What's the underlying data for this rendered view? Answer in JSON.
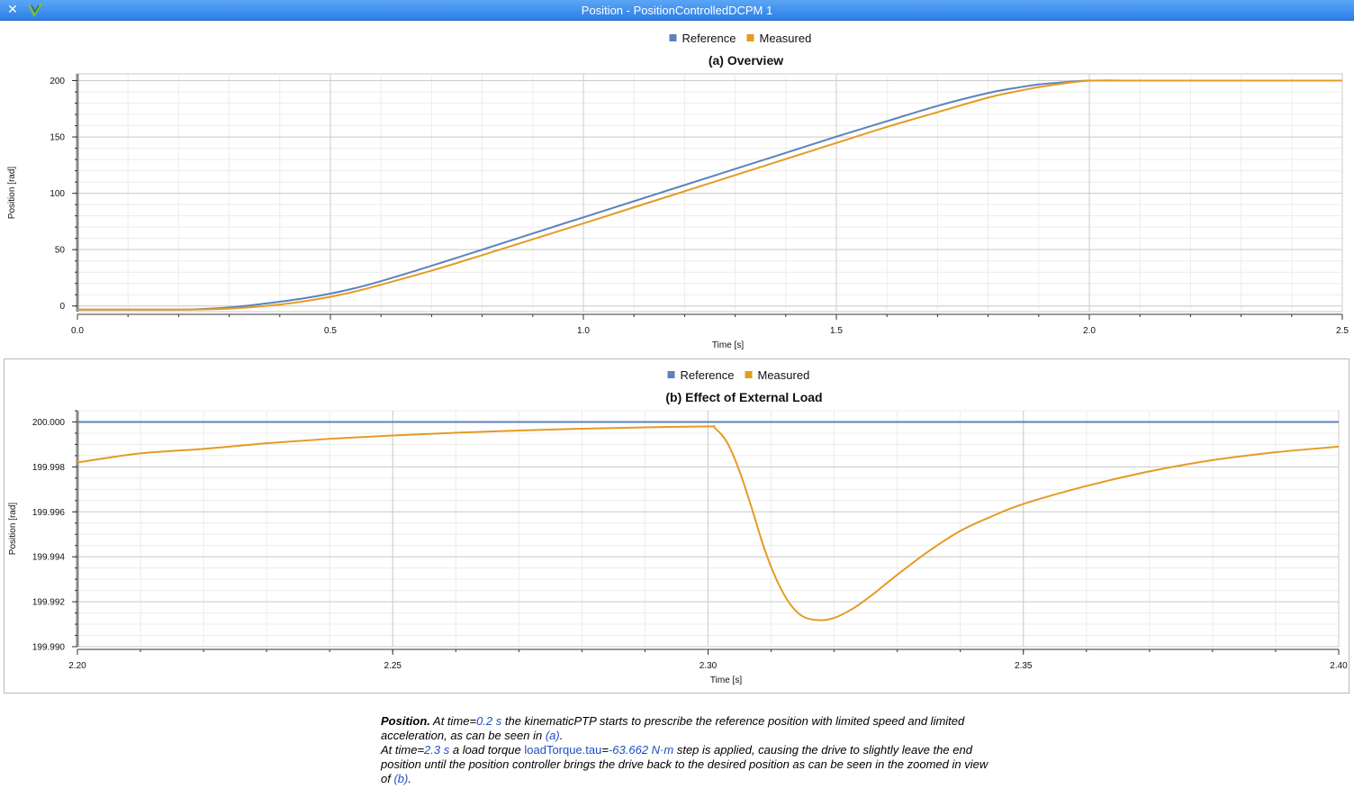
{
  "window": {
    "title": "Position - PositionControlledDCPM 1"
  },
  "colors": {
    "reference": "#5b82bd",
    "measured": "#e59b22",
    "grid_major": "#cccccc",
    "grid_minor": "#ececec"
  },
  "chart_data": [
    {
      "type": "line",
      "title": "(a)  Overview",
      "xlabel": "Time [s]",
      "ylabel": "Position [rad]",
      "xlim": [
        0,
        2.5
      ],
      "ylim": [
        -5,
        206
      ],
      "xticks": [
        "0.0",
        "0.5",
        "1.0",
        "1.5",
        "2.0",
        "2.5"
      ],
      "xtick_values": [
        0,
        0.5,
        1.0,
        1.5,
        2.0,
        2.5
      ],
      "yticks": [
        "0",
        "50",
        "100",
        "150",
        "200"
      ],
      "ytick_values": [
        0,
        50,
        100,
        150,
        200
      ],
      "legend": [
        "Reference",
        "Measured"
      ],
      "legend_position": "top-center",
      "grid": true,
      "series": [
        {
          "name": "Reference",
          "x": [
            0,
            0.1,
            0.2,
            0.25,
            0.3,
            0.35,
            0.4,
            0.45,
            0.5,
            0.55,
            0.6,
            0.7,
            0.8,
            0.9,
            1.0,
            1.1,
            1.2,
            1.3,
            1.4,
            1.5,
            1.6,
            1.7,
            1.8,
            1.85,
            1.9,
            1.95,
            2.0,
            2.1,
            2.2,
            2.3,
            2.4,
            2.5
          ],
          "y": [
            -3.2,
            -3.2,
            -3.2,
            -2.6,
            -1.3,
            1.0,
            3.8,
            7.0,
            11.0,
            16.0,
            22.0,
            35.7,
            50.0,
            64.4,
            78.7,
            93.0,
            107.3,
            121.6,
            135.9,
            150.3,
            164.0,
            177.6,
            189.0,
            193.2,
            196.6,
            198.5,
            200.0,
            200.0,
            200.0,
            200.0,
            200.0,
            200.0
          ]
        },
        {
          "name": "Measured",
          "x": [
            0,
            0.1,
            0.2,
            0.25,
            0.3,
            0.35,
            0.4,
            0.45,
            0.5,
            0.55,
            0.6,
            0.7,
            0.8,
            0.9,
            1.0,
            1.1,
            1.2,
            1.3,
            1.4,
            1.5,
            1.6,
            1.7,
            1.8,
            1.85,
            1.9,
            1.95,
            2.0,
            2.1,
            2.2,
            2.3,
            2.4,
            2.5
          ],
          "y": [
            -3.2,
            -3.2,
            -3.2,
            -3.0,
            -2.3,
            -0.8,
            1.3,
            4.3,
            8.2,
            13.0,
            18.9,
            31.4,
            45.1,
            59.2,
            73.3,
            87.6,
            101.8,
            116.1,
            130.4,
            144.7,
            158.9,
            172.0,
            184.9,
            189.9,
            194.2,
            197.5,
            199.9,
            200.0,
            200.0,
            200.0,
            200.0,
            200.0
          ]
        }
      ]
    },
    {
      "type": "line",
      "title": "(b)  Effect of External Load",
      "xlabel": "Time [s]",
      "ylabel": "Position [rad]",
      "xlim": [
        2.2,
        2.4
      ],
      "ylim": [
        199.99,
        200.0005
      ],
      "xticks": [
        "2.20",
        "2.25",
        "2.30",
        "2.35",
        "2.40"
      ],
      "xtick_values": [
        2.2,
        2.25,
        2.3,
        2.35,
        2.4
      ],
      "yticks": [
        "199.990",
        "199.992",
        "199.994",
        "199.996",
        "199.998",
        "200.000"
      ],
      "ytick_values": [
        199.99,
        199.992,
        199.994,
        199.996,
        199.998,
        200.0
      ],
      "legend": [
        "Reference",
        "Measured"
      ],
      "legend_position": "top-center",
      "grid": true,
      "series": [
        {
          "name": "Reference",
          "x": [
            2.2,
            2.4
          ],
          "y": [
            200.0,
            200.0
          ]
        },
        {
          "name": "Measured",
          "x": [
            2.2,
            2.21,
            2.22,
            2.23,
            2.24,
            2.25,
            2.26,
            2.27,
            2.28,
            2.29,
            2.3,
            2.301,
            2.303,
            2.305,
            2.307,
            2.309,
            2.311,
            2.313,
            2.315,
            2.3175,
            2.32,
            2.323,
            2.326,
            2.33,
            2.335,
            2.34,
            2.345,
            2.35,
            2.36,
            2.37,
            2.38,
            2.39,
            2.4
          ],
          "y": [
            199.9982,
            199.9986,
            199.9988,
            199.99905,
            199.99925,
            199.9994,
            199.99952,
            199.99962,
            199.9997,
            199.99976,
            199.9998,
            199.99975,
            199.9991,
            199.9978,
            199.9961,
            199.9943,
            199.9929,
            199.9919,
            199.99135,
            199.99118,
            199.99128,
            199.9917,
            199.9923,
            199.9932,
            199.99425,
            199.99515,
            199.9958,
            199.99635,
            199.99715,
            199.9978,
            199.9983,
            199.99865,
            199.9989
          ]
        }
      ]
    }
  ],
  "caption": {
    "p1_bold": "Position.",
    "p1_a": " At time=",
    "p1_time": "0.2 s",
    "p1_b": " the kinematicPTP starts to prescribe the reference position with limited speed and limited acceleration, as can be seen in ",
    "p1_ref": "(a)",
    "p1_end": ".",
    "p2_a": "At time=",
    "p2_time": "2.3 s",
    "p2_b": " a load torque ",
    "p2_var": "loadTorque.tau",
    "p2_eq": "=",
    "p2_val": "-63.662 N·m",
    "p2_c": " step is applied, causing the drive to slightly leave the end position until the position controller brings the drive back to the desired position as can be seen in the zoomed in view of ",
    "p2_ref": "(b)",
    "p2_end": "."
  }
}
